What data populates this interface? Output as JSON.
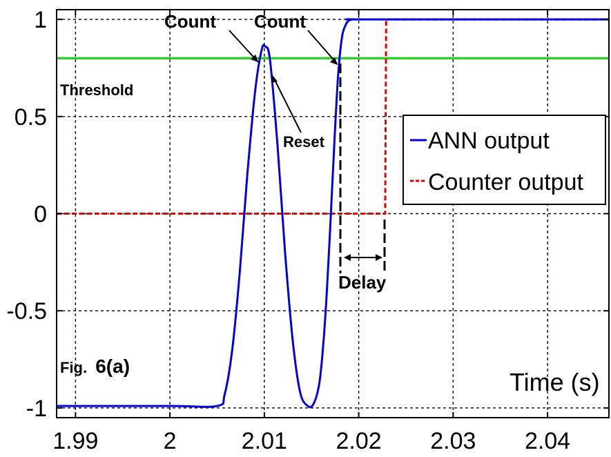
{
  "chart_data": {
    "type": "line",
    "title": "",
    "xlabel": "Time (s)",
    "ylabel": "",
    "xlim": [
      1.988,
      2.0465
    ],
    "ylim": [
      -1.05,
      1.05
    ],
    "grid": true,
    "xticks": [
      1.99,
      2.0,
      2.01,
      2.02,
      2.03,
      2.04
    ],
    "xtick_labels": [
      "1.99",
      "2",
      "2.01",
      "2.02",
      "2.03",
      "2.04"
    ],
    "yticks": [
      -1,
      -0.5,
      0,
      0.5,
      1
    ],
    "ytick_labels": [
      "-1",
      "-0.5",
      "0",
      "0.5",
      "1"
    ],
    "legend_position": "right",
    "series": [
      {
        "name": "ANN output",
        "color": "#0000e0",
        "style": "solid",
        "x": [
          1.988,
          2.0,
          2.005,
          2.0058,
          2.0066,
          2.0074,
          2.0082,
          2.009,
          2.0097,
          2.0101,
          2.0106,
          2.0114,
          2.0122,
          2.013,
          2.0138,
          2.0146,
          2.0152,
          2.0158,
          2.0162,
          2.0166,
          2.017,
          2.0174,
          2.0178,
          2.0182,
          2.0186,
          2.019,
          2.0196,
          2.021,
          2.0465
        ],
        "y": [
          -0.99,
          -0.99,
          -0.99,
          -0.93,
          -0.7,
          -0.3,
          0.2,
          0.62,
          0.84,
          0.86,
          0.79,
          0.35,
          -0.2,
          -0.65,
          -0.92,
          -0.99,
          -0.98,
          -0.88,
          -0.7,
          -0.42,
          -0.05,
          0.35,
          0.7,
          0.9,
          0.97,
          0.995,
          1.0,
          1.0,
          1.0
        ]
      },
      {
        "name": "Counter output",
        "color": "#e00000",
        "style": "dashed",
        "x": [
          1.988,
          2.0228,
          2.0229,
          2.0465
        ],
        "y": [
          0,
          0,
          1,
          1
        ]
      },
      {
        "name": "Threshold",
        "color": "#33cc33",
        "style": "solid",
        "x": [
          1.988,
          2.0465
        ],
        "y": [
          0.8,
          0.8
        ]
      }
    ],
    "annotations": {
      "count1": "Count",
      "count2": "Count",
      "reset": "Reset",
      "threshold": "Threshold",
      "delay": "Delay",
      "fig": "Fig.",
      "fig_num": "6(a)"
    }
  }
}
